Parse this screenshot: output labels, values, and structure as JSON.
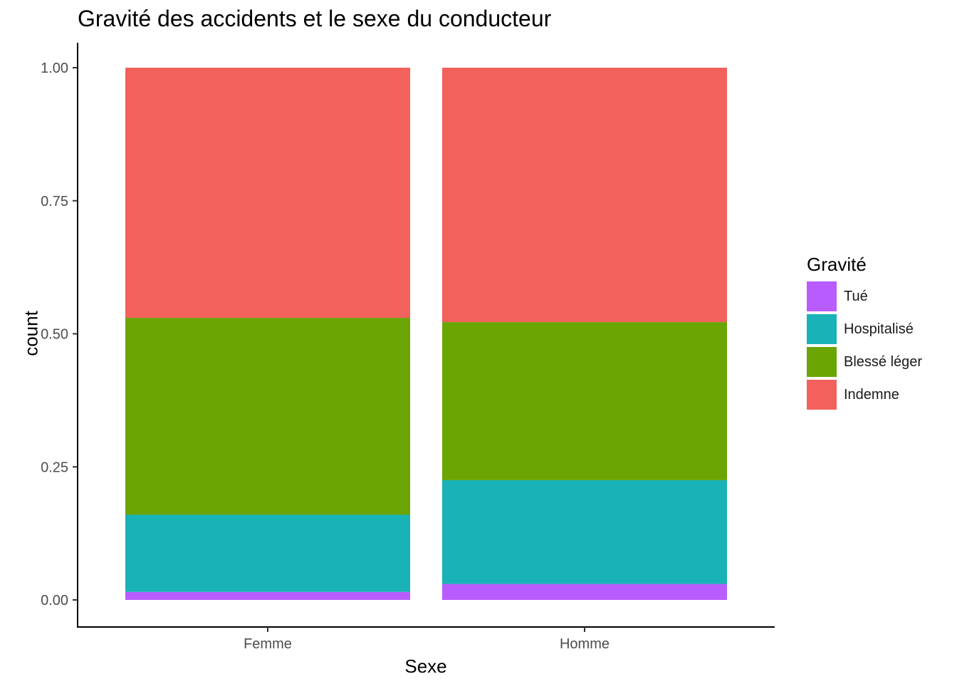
{
  "chart_data": {
    "type": "bar",
    "stacked": true,
    "title": "Gravité des accidents et le sexe du conducteur",
    "xlabel": "Sexe",
    "ylabel": "count",
    "categories": [
      "Femme",
      "Homme"
    ],
    "ylim": [
      0,
      1
    ],
    "yticks": [
      "0.00",
      "0.25",
      "0.50",
      "0.75",
      "1.00"
    ],
    "ytick_values": [
      0,
      0.25,
      0.5,
      0.75,
      1.0
    ],
    "legend_title": "Gravité",
    "legend_position": "right",
    "grid": false,
    "series": [
      {
        "name": "Tué",
        "color": "#B95CFF",
        "values": [
          0.015,
          0.03
        ]
      },
      {
        "name": "Hospitalisé",
        "color": "#18B2B7",
        "values": [
          0.145,
          0.195
        ]
      },
      {
        "name": "Blessé léger",
        "color": "#6AA503",
        "values": [
          0.37,
          0.297
        ]
      },
      {
        "name": "Indemne",
        "color": "#F2615C",
        "values": [
          0.47,
          0.478
        ]
      }
    ]
  }
}
